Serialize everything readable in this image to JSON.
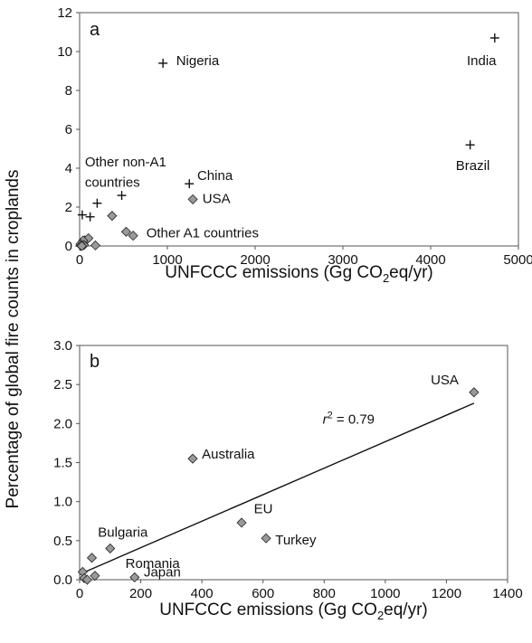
{
  "figure": {
    "shared_ylabel": "Percentage of global fire counts in croplands"
  },
  "chart_data": [
    {
      "type": "scatter",
      "panel_label": "a",
      "xlabel": {
        "main": "UNFCCC emissions (Gg CO",
        "sub": "2",
        "tail": "eq/yr)"
      },
      "ylabel": "Percentage of global fire counts in croplands",
      "xlim": [
        0,
        5000
      ],
      "ylim": [
        0,
        12
      ],
      "xticks": [
        "0",
        "1000",
        "2000",
        "3000",
        "4000",
        "5000"
      ],
      "yticks": [
        "0",
        "2",
        "4",
        "6",
        "8",
        "10",
        "12"
      ],
      "grid": false,
      "series": [
        {
          "marker": "plus",
          "color": "#111111",
          "points": [
            {
              "x": 4730,
              "y": 10.7
            },
            {
              "x": 950,
              "y": 9.4
            },
            {
              "x": 4450,
              "y": 5.2
            },
            {
              "x": 1250,
              "y": 3.2
            },
            {
              "x": 480,
              "y": 2.6
            },
            {
              "x": 200,
              "y": 2.2
            },
            {
              "x": 30,
              "y": 1.6
            },
            {
              "x": 120,
              "y": 1.5
            },
            {
              "x": 60,
              "y": 0.3
            },
            {
              "x": 40,
              "y": 0.15
            },
            {
              "x": 20,
              "y": 0.05
            },
            {
              "x": 5,
              "y": 0.0
            }
          ]
        },
        {
          "marker": "diamond",
          "color": "#999999",
          "points": [
            {
              "x": 1290,
              "y": 2.4
            },
            {
              "x": 370,
              "y": 1.55
            },
            {
              "x": 530,
              "y": 0.73
            },
            {
              "x": 610,
              "y": 0.53
            },
            {
              "x": 100,
              "y": 0.4
            },
            {
              "x": 40,
              "y": 0.28
            },
            {
              "x": 180,
              "y": 0.03
            },
            {
              "x": 50,
              "y": 0.05
            },
            {
              "x": 10,
              "y": 0.1
            },
            {
              "x": 15,
              "y": 0.02
            },
            {
              "x": 25,
              "y": 0.0
            }
          ]
        }
      ],
      "annotations": [
        {
          "text": "India",
          "x": 4580,
          "y": 9.3,
          "anchor": "middle"
        },
        {
          "text": "Nigeria",
          "x": 1100,
          "y": 9.3,
          "anchor": "start"
        },
        {
          "text": "Brazil",
          "x": 4480,
          "y": 3.9,
          "anchor": "middle"
        },
        {
          "text": "China",
          "x": 1340,
          "y": 3.4,
          "anchor": "start"
        },
        {
          "text": "USA",
          "x": 1400,
          "y": 2.2,
          "anchor": "start"
        },
        {
          "text": "Other non-A1",
          "x": 60,
          "y": 4.1,
          "anchor": "start"
        },
        {
          "text": "countries",
          "x": 60,
          "y": 3.05,
          "anchor": "start"
        },
        {
          "text": "Other A1 countries",
          "x": 760,
          "y": 0.45,
          "anchor": "start"
        }
      ]
    },
    {
      "type": "scatter",
      "panel_label": "b",
      "xlabel": {
        "main": "UNFCCC emissions (Gg CO",
        "sub": "2",
        "tail": "eq/yr)"
      },
      "ylabel": "Percentage of global fire counts in croplands",
      "xlim": [
        0,
        1400
      ],
      "ylim": [
        0,
        3.0
      ],
      "xticks": [
        "0",
        "200",
        "400",
        "600",
        "800",
        "1000",
        "1200",
        "1400"
      ],
      "yticks": [
        "0.0",
        "0.5",
        "1.0",
        "1.5",
        "2.0",
        "2.5",
        "3.0"
      ],
      "grid": false,
      "series": [
        {
          "marker": "diamond",
          "color": "#999999",
          "points": [
            {
              "x": 1290,
              "y": 2.4
            },
            {
              "x": 370,
              "y": 1.55
            },
            {
              "x": 530,
              "y": 0.73
            },
            {
              "x": 610,
              "y": 0.53
            },
            {
              "x": 100,
              "y": 0.4
            },
            {
              "x": 40,
              "y": 0.28
            },
            {
              "x": 180,
              "y": 0.03
            },
            {
              "x": 50,
              "y": 0.05
            },
            {
              "x": 10,
              "y": 0.1
            },
            {
              "x": 15,
              "y": 0.02
            },
            {
              "x": 25,
              "y": 0.0
            }
          ]
        }
      ],
      "fit_line": {
        "x": [
          0,
          1290
        ],
        "y": [
          0.07,
          2.26
        ]
      },
      "r2_label": {
        "pre": "r",
        "sup": "2",
        "post": " = 0.79"
      },
      "r2_position": {
        "x": 880,
        "y": 2.0
      },
      "annotations": [
        {
          "text": "USA",
          "x": 1240,
          "y": 2.5,
          "anchor": "end"
        },
        {
          "text": "Australia",
          "x": 400,
          "y": 1.55,
          "anchor": "start"
        },
        {
          "text": "EU",
          "x": 570,
          "y": 0.85,
          "anchor": "start"
        },
        {
          "text": "Turkey",
          "x": 640,
          "y": 0.45,
          "anchor": "start"
        },
        {
          "text": "Bulgaria",
          "x": 60,
          "y": 0.55,
          "anchor": "start"
        },
        {
          "text": "Romania",
          "x": 150,
          "y": 0.15,
          "anchor": "start"
        },
        {
          "text": "Japan",
          "x": 210,
          "y": 0.04,
          "anchor": "start"
        }
      ]
    }
  ]
}
